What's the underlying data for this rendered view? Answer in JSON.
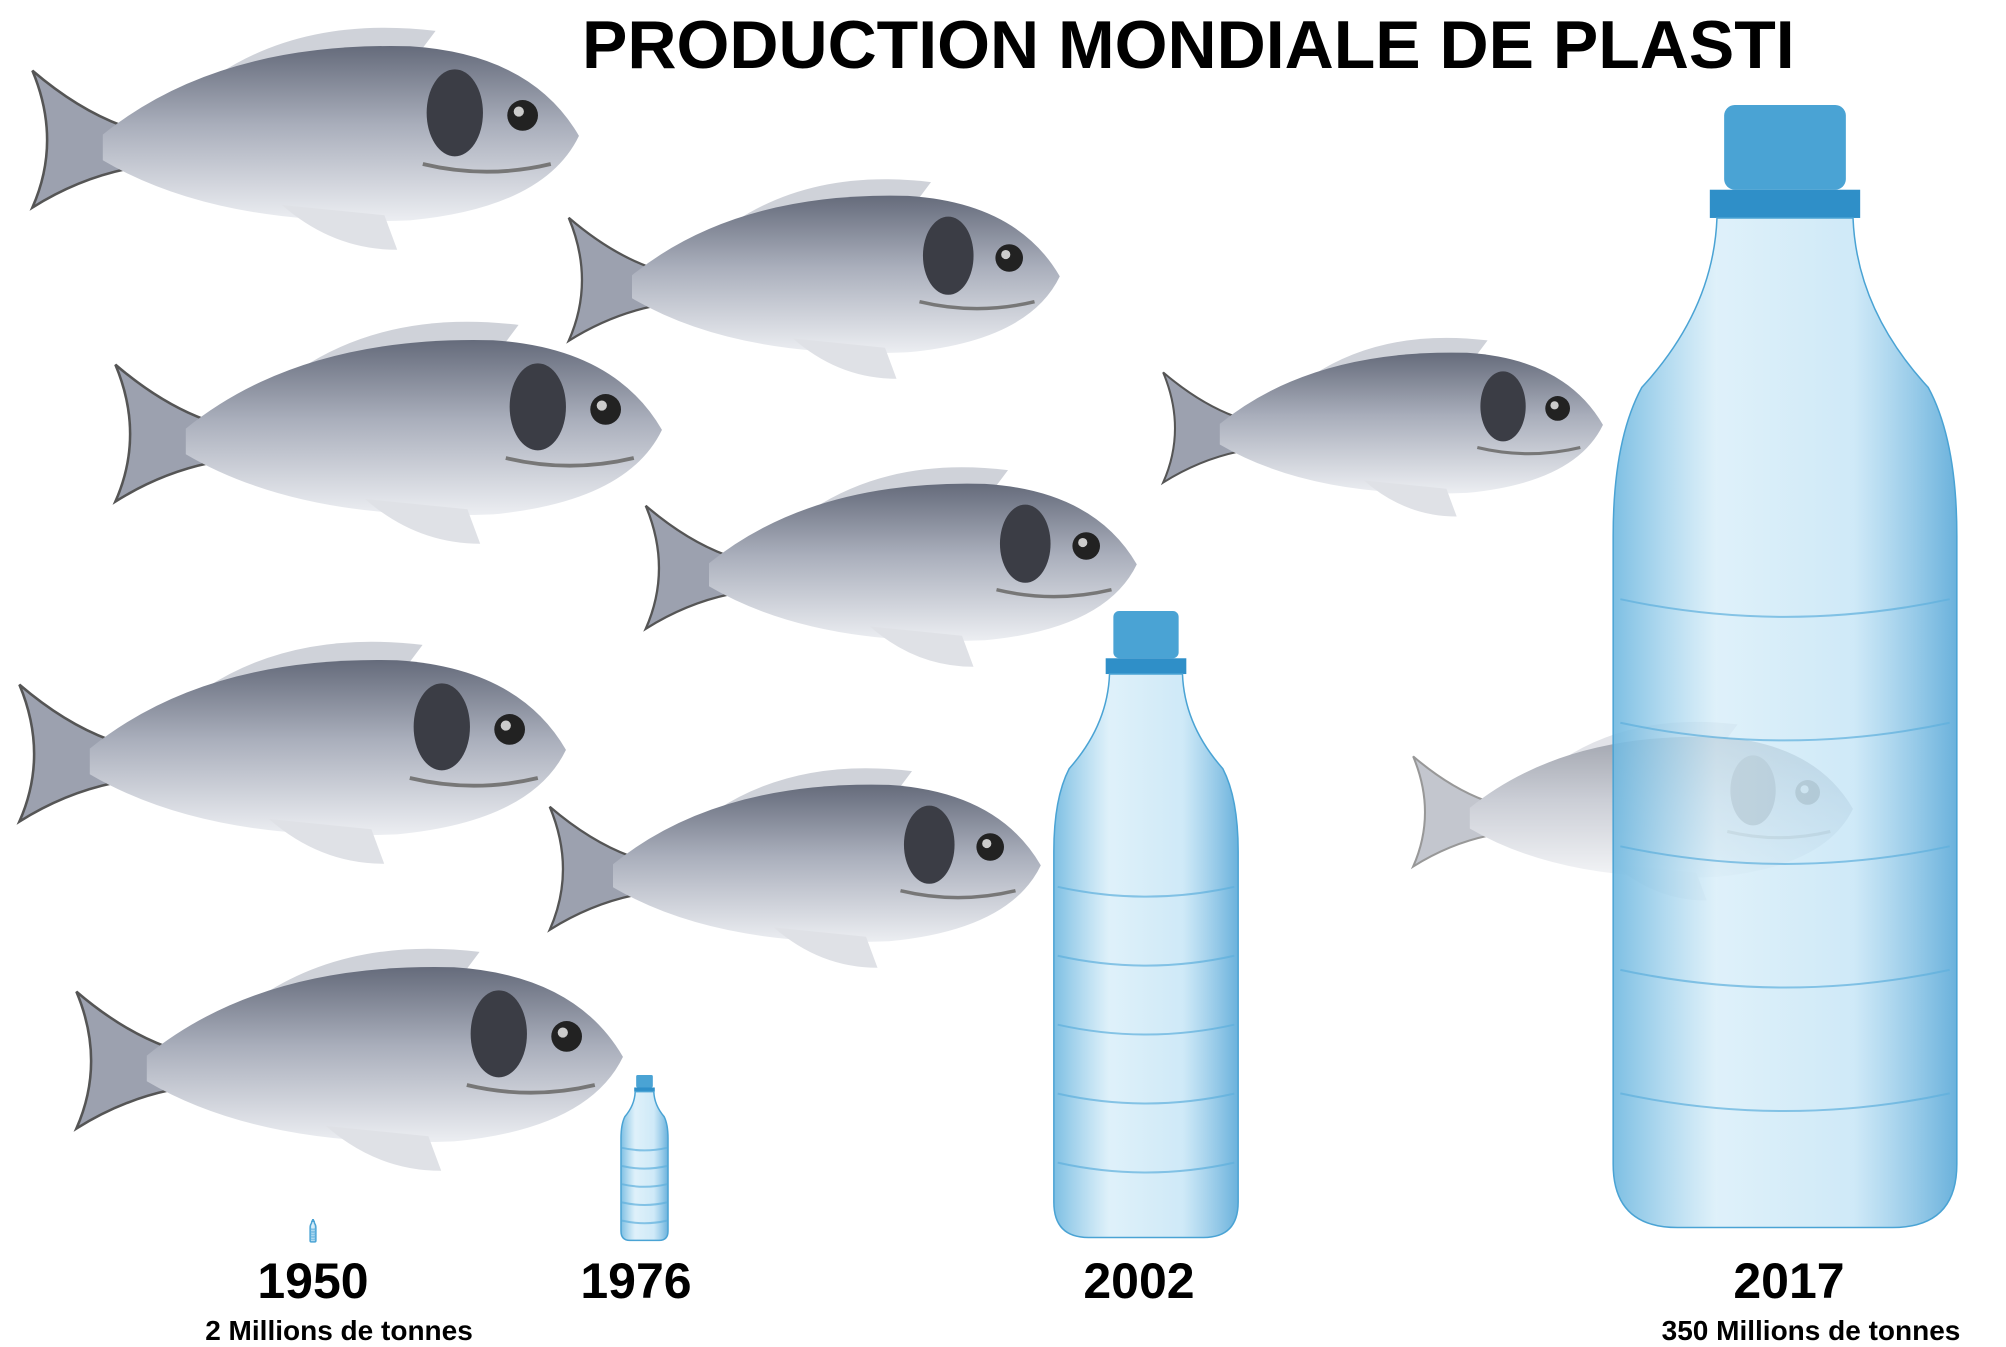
{
  "title": "PRODUCTION MONDIALE DE PLASTI",
  "years": [
    {
      "year": "1950",
      "caption": "2 Millions de tonnes"
    },
    {
      "year": "1976"
    },
    {
      "year": "2002"
    },
    {
      "year": "2017",
      "caption": "350 Millions de tonnes"
    }
  ]
}
